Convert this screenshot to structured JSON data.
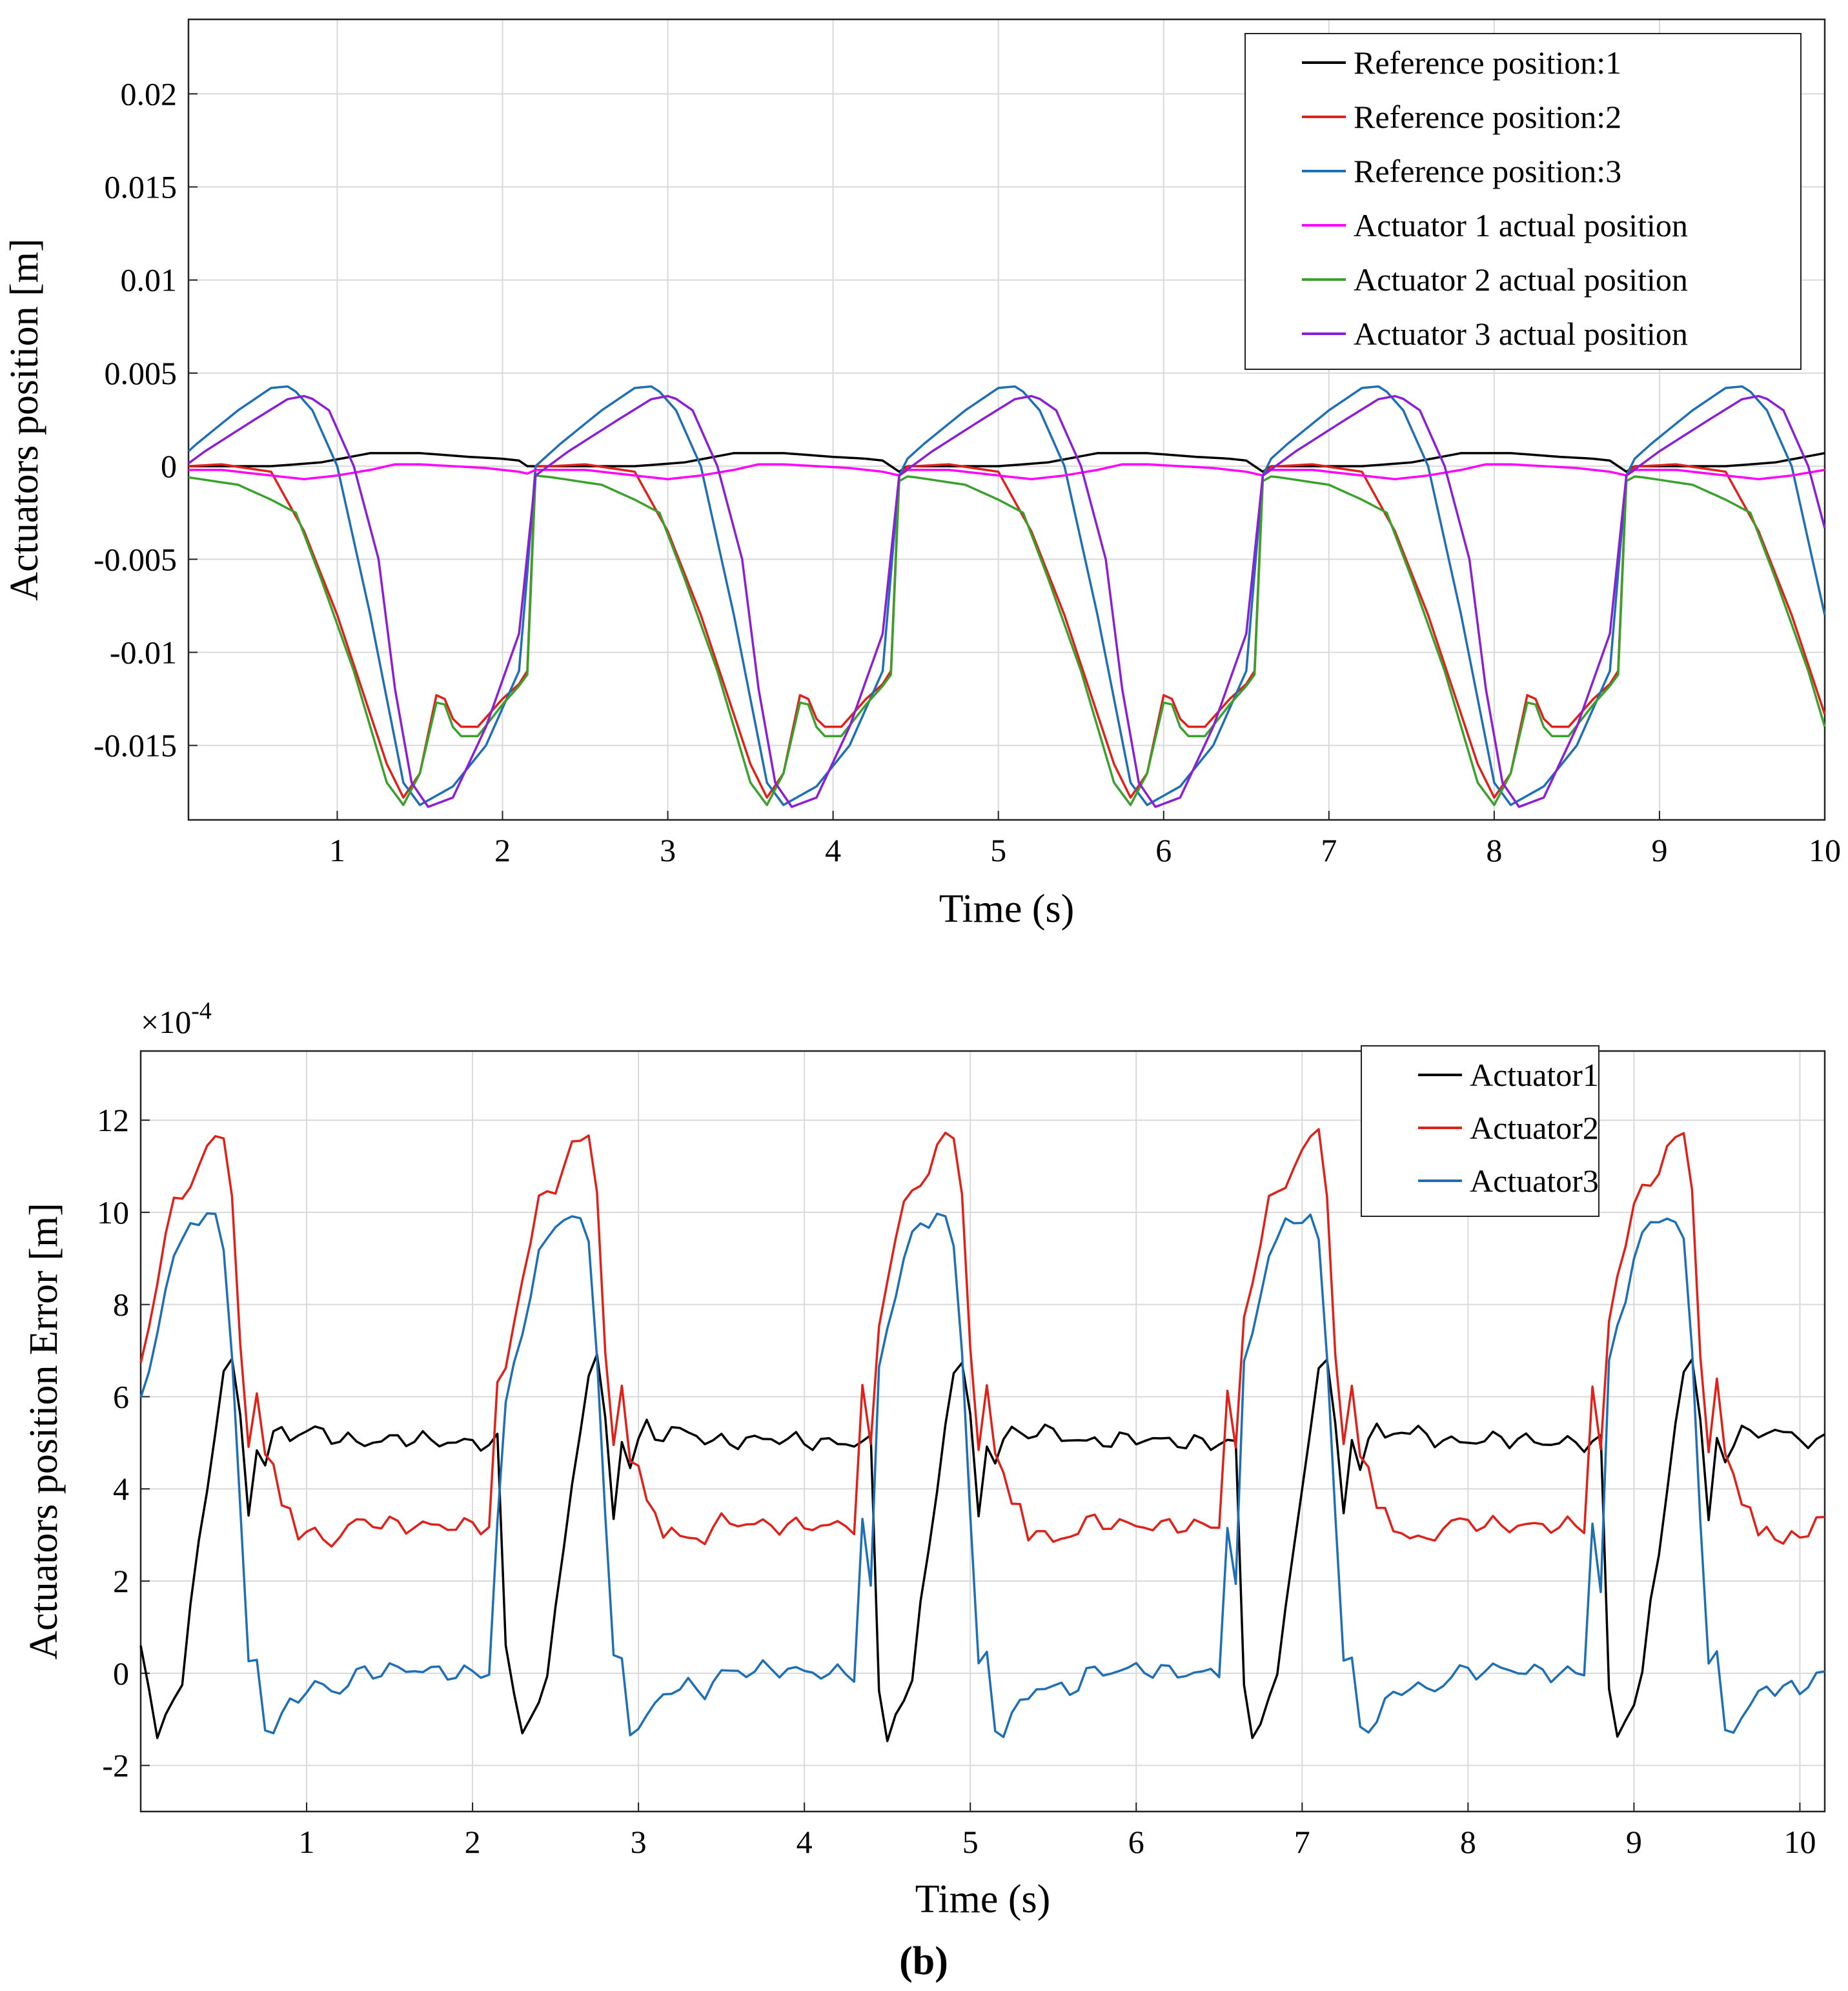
{
  "chart_data": [
    {
      "type": "line",
      "title": "",
      "xlabel": "Time (s)",
      "ylabel": "Actuators position [m]",
      "xlim": [
        0.1,
        10.0
      ],
      "ylim": [
        -0.019,
        0.024
      ],
      "xticks": [
        1,
        2,
        3,
        4,
        5,
        6,
        7,
        8,
        9,
        10
      ],
      "xtick_labels": [
        "1",
        "2",
        "3",
        "4",
        "5",
        "6",
        "7",
        "8",
        "9",
        "10"
      ],
      "yticks": [
        -0.015,
        -0.01,
        -0.005,
        0,
        0.005,
        0.01,
        0.015,
        0.02
      ],
      "ytick_labels": [
        "-0.015",
        "-0.01",
        "-0.005",
        "0",
        "0.005",
        "0.01",
        "0.015",
        "0.02"
      ],
      "grid": true,
      "legend_position": "top-right",
      "period": 2.2,
      "series": [
        {
          "name": "Reference position:1",
          "color": "#000000",
          "x": [
            0.0,
            0.2,
            0.6,
            0.9,
            1.2,
            1.5,
            1.8,
            2.0,
            2.1,
            2.2
          ],
          "y": [
            0.0,
            0.0,
            0.0,
            0.0002,
            0.0007,
            0.0007,
            0.0005,
            0.0004,
            0.0003,
            -0.0003
          ]
        },
        {
          "name": "Reference position:2",
          "color": "#e0211a",
          "x": [
            0.0,
            0.1,
            0.3,
            0.6,
            0.8,
            1.0,
            1.15,
            1.3,
            1.4,
            1.5,
            1.6,
            1.65,
            1.72,
            1.85,
            2.0,
            2.1,
            2.15,
            2.2
          ],
          "y": [
            0.0,
            0.0,
            0.0001,
            -0.0003,
            -0.0035,
            -0.008,
            -0.012,
            -0.016,
            -0.0178,
            -0.0165,
            -0.0123,
            -0.0125,
            -0.014,
            -0.014,
            -0.0125,
            -0.0117,
            -0.011,
            -0.0005
          ]
        },
        {
          "name": "Reference position:3",
          "color": "#1f6fb5",
          "x": [
            0.0,
            0.15,
            0.4,
            0.6,
            0.72,
            0.85,
            1.0,
            1.2,
            1.4,
            1.5,
            1.7,
            1.9,
            2.1,
            2.2
          ],
          "y": [
            0.0,
            0.0012,
            0.003,
            0.0042,
            0.0043,
            0.003,
            0.0,
            -0.008,
            -0.017,
            -0.0182,
            -0.0172,
            -0.015,
            -0.011,
            -0.0005
          ]
        },
        {
          "name": "Actuator 1 actual position",
          "color": "#ff00ff",
          "x": [
            0.0,
            0.1,
            0.3,
            0.5,
            0.8,
            1.0,
            1.2,
            1.35,
            1.5,
            1.7,
            1.9,
            2.1,
            2.2
          ],
          "y": [
            -0.0002,
            -0.0002,
            -0.0002,
            -0.0004,
            -0.0007,
            -0.0005,
            -0.0002,
            0.0001,
            0.0001,
            0.0,
            -0.0001,
            -0.0003,
            -0.0005
          ]
        },
        {
          "name": "Actuator 2 actual position",
          "color": "#3aa12d",
          "x": [
            0.0,
            0.1,
            0.4,
            0.6,
            0.75,
            0.9,
            1.1,
            1.3,
            1.4,
            1.5,
            1.6,
            1.65,
            1.72,
            1.85,
            2.0,
            2.1,
            2.15,
            2.2
          ],
          "y": [
            -0.0005,
            -0.0006,
            -0.001,
            -0.0018,
            -0.0025,
            -0.006,
            -0.011,
            -0.017,
            -0.0182,
            -0.0165,
            -0.0127,
            -0.0128,
            -0.0145,
            -0.0145,
            -0.0128,
            -0.0118,
            -0.0112,
            -0.0008
          ]
        },
        {
          "name": "Actuator 3 actual position",
          "color": "#8b1fd6",
          "x": [
            0.0,
            0.2,
            0.5,
            0.7,
            0.82,
            0.95,
            1.1,
            1.25,
            1.35,
            1.45,
            1.55,
            1.7,
            1.9,
            2.1,
            2.2
          ],
          "y": [
            -0.0005,
            0.0008,
            0.0025,
            0.0036,
            0.0038,
            0.003,
            0.0,
            -0.005,
            -0.012,
            -0.017,
            -0.0183,
            -0.0178,
            -0.014,
            -0.009,
            -0.0005
          ]
        }
      ]
    },
    {
      "type": "line",
      "title": "",
      "xlabel": "Time (s)",
      "ylabel": "Actuators position Error [m]",
      "exponent_label": "×10",
      "exponent_power": "-4",
      "xlim": [
        0.0,
        10.15
      ],
      "ylim": [
        -3.0,
        13.5
      ],
      "xticks": [
        1,
        2,
        3,
        4,
        5,
        6,
        7,
        8,
        9,
        10
      ],
      "xtick_labels": [
        "1",
        "2",
        "3",
        "4",
        "5",
        "6",
        "7",
        "8",
        "9",
        "10"
      ],
      "yticks": [
        -2,
        0,
        2,
        4,
        6,
        8,
        10,
        12
      ],
      "ytick_labels": [
        "-2",
        "0",
        "2",
        "4",
        "6",
        "8",
        "10",
        "12"
      ],
      "grid": true,
      "legend_position": "top-right",
      "period": 2.2,
      "series": [
        {
          "name": "Actuator1",
          "color": "#000000",
          "x": [
            0.0,
            0.05,
            0.1,
            0.15,
            0.2,
            0.25,
            0.3,
            0.4,
            0.5,
            0.55,
            0.6,
            0.65,
            0.7,
            0.75,
            0.8,
            0.85,
            0.9,
            1.0,
            1.3,
            1.6,
            1.9,
            2.1
          ],
          "y": [
            0.6,
            -0.3,
            -1.3,
            -1.0,
            -0.7,
            -0.1,
            1.6,
            3.9,
            6.6,
            6.9,
            5.5,
            3.3,
            5.0,
            4.6,
            5.1,
            5.3,
            5.1,
            5.3,
            5.0,
            5.1,
            5.0,
            5.0
          ]
        },
        {
          "name": "Actuator2",
          "color": "#e0211a",
          "x": [
            0.0,
            0.1,
            0.2,
            0.3,
            0.4,
            0.5,
            0.55,
            0.6,
            0.65,
            0.7,
            0.75,
            0.8,
            0.85,
            0.9,
            0.95,
            1.0,
            1.1,
            1.2,
            1.3,
            1.6,
            1.9,
            2.1,
            2.15,
            2.2
          ],
          "y": [
            6.6,
            8.6,
            10.2,
            10.6,
            11.4,
            11.7,
            10.5,
            7.0,
            4.8,
            6.2,
            4.8,
            4.5,
            3.6,
            3.5,
            3.0,
            3.2,
            2.8,
            3.0,
            3.3,
            3.2,
            3.2,
            3.2,
            6.2,
            4.8
          ]
        },
        {
          "name": "Actuator3",
          "color": "#1f6fb5",
          "x": [
            0.0,
            0.1,
            0.2,
            0.3,
            0.4,
            0.45,
            0.5,
            0.55,
            0.6,
            0.65,
            0.7,
            0.75,
            0.8,
            0.9,
            1.0,
            1.1,
            1.2,
            1.3,
            1.6,
            1.9,
            2.1,
            2.15,
            2.2
          ],
          "y": [
            5.8,
            7.5,
            9.0,
            9.8,
            9.9,
            9.8,
            9.3,
            7.0,
            3.5,
            0.2,
            0.3,
            -1.2,
            -1.2,
            -0.7,
            -0.3,
            -0.3,
            -0.4,
            0.0,
            0.1,
            0.0,
            0.0,
            3.3,
            1.8
          ]
        }
      ]
    }
  ],
  "panel_label": "(b)"
}
